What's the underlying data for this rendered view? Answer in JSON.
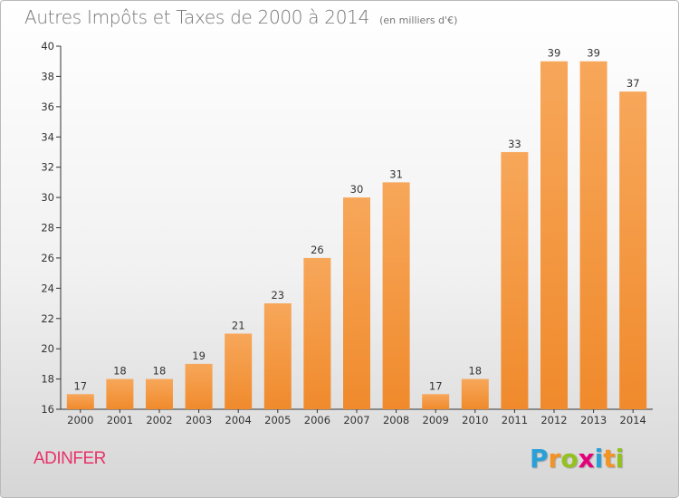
{
  "chart_data": {
    "type": "bar",
    "title": "Autres Impôts et Taxes de 2000 à 2014",
    "subtitle": "(en milliers d'€)",
    "categories": [
      "2000",
      "2001",
      "2002",
      "2003",
      "2004",
      "2005",
      "2006",
      "2007",
      "2008",
      "2009",
      "2010",
      "2011",
      "2012",
      "2013",
      "2014"
    ],
    "values": [
      17,
      18,
      18,
      19,
      21,
      23,
      26,
      30,
      31,
      17,
      18,
      33,
      39,
      39,
      37
    ],
    "ylim": [
      16,
      40
    ],
    "yticks": [
      "16",
      "18",
      "20",
      "22",
      "24",
      "26",
      "28",
      "30",
      "32",
      "34",
      "36",
      "38",
      "40"
    ],
    "grid": false,
    "bar_color": "#f08a2c",
    "bar_color_light": "#f7a75a"
  },
  "footer": {
    "commune": "ADINFER",
    "brand_letters": [
      "P",
      "r",
      "o",
      "x",
      "i",
      "t",
      "i"
    ],
    "brand_colors": [
      "#29a0d8",
      "#f39321",
      "#95c11f",
      "#e4007a",
      "#29a0d8",
      "#f39321",
      "#95c11f"
    ]
  },
  "colors": {
    "commune": "#e8336a",
    "axis": "#333333"
  }
}
